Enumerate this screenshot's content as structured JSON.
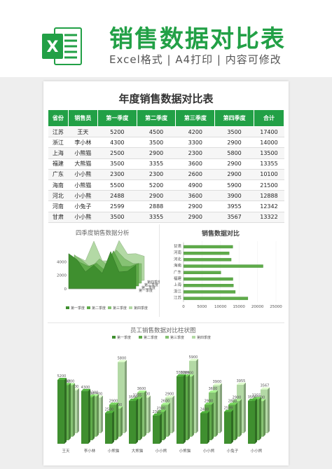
{
  "header": {
    "title": "销售数据对比表",
    "subtitle": "Excel格式 | A4打印 | 内容可修改",
    "logo_letter": "X"
  },
  "sheet": {
    "title": "年度销售数据对比表",
    "columns": [
      "省份",
      "销售员",
      "第一季度",
      "第二季度",
      "第三季度",
      "第四季度",
      "合计"
    ],
    "rows": [
      [
        "江苏",
        "王天",
        "5200",
        "4500",
        "4200",
        "3500",
        "17400"
      ],
      [
        "浙江",
        "李小林",
        "4300",
        "3500",
        "3300",
        "2900",
        "14000"
      ],
      [
        "上海",
        "小熊猫",
        "2500",
        "2900",
        "2300",
        "5800",
        "13500"
      ],
      [
        "福建",
        "大熊猫",
        "3500",
        "3355",
        "3600",
        "2900",
        "13355"
      ],
      [
        "广东",
        "小小熊",
        "2300",
        "2300",
        "2600",
        "2900",
        "10100"
      ],
      [
        "海南",
        "小熊猫",
        "5500",
        "5200",
        "4900",
        "5900",
        "21500"
      ],
      [
        "河北",
        "小小熊",
        "2488",
        "2900",
        "3600",
        "3900",
        "12888"
      ],
      [
        "河南",
        "小兔子",
        "2599",
        "2888",
        "2900",
        "3955",
        "12342"
      ],
      [
        "甘肃",
        "小小熊",
        "3500",
        "3355",
        "2900",
        "3567",
        "13322"
      ]
    ]
  },
  "colors": {
    "brand": "#22a046",
    "series": [
      "#3f8f2f",
      "#5fab4a",
      "#86c273",
      "#b3d9a5"
    ]
  },
  "chart_data": [
    {
      "type": "area",
      "title": "四季度销售数据分析",
      "series_names": [
        "第一季度",
        "第二季度",
        "第三季度",
        "第四季度"
      ],
      "yticks": [
        "4000",
        "2000",
        "0"
      ],
      "ylim": [
        0,
        6000
      ],
      "values": [
        [
          5200,
          4300,
          2500,
          3500,
          2300,
          5500,
          2488,
          2599,
          3500
        ],
        [
          4500,
          3500,
          2900,
          3355,
          2300,
          5200,
          2900,
          2888,
          3355
        ],
        [
          4200,
          3300,
          2300,
          3600,
          2600,
          4900,
          3600,
          2900,
          2900
        ],
        [
          3500,
          2900,
          5800,
          2900,
          2900,
          5900,
          3900,
          3955,
          3567
        ]
      ]
    },
    {
      "type": "bar",
      "title": "销售数据对比",
      "orientation": "horizontal",
      "categories": [
        "甘肃",
        "河南",
        "河北",
        "海南",
        "广东",
        "福建",
        "上海",
        "浙江",
        "江苏"
      ],
      "values": [
        13322,
        12342,
        12888,
        21500,
        10100,
        13355,
        13500,
        14000,
        17400
      ],
      "xticks": [
        "0",
        "5000",
        "10000",
        "15000",
        "20000",
        "25000"
      ],
      "xlim": [
        0,
        25000
      ]
    },
    {
      "type": "bar",
      "title": "员工销售数据对比柱状图",
      "categories": [
        "王天",
        "李小林",
        "小熊猫",
        "大熊猫",
        "小小熊",
        "小熊猫",
        "小小熊",
        "小兔子",
        "小小熊"
      ],
      "series": [
        {
          "name": "第一季度",
          "values": [
            5200,
            4300,
            2500,
            3500,
            2300,
            5500,
            2488,
            2599,
            3500
          ]
        },
        {
          "name": "第二季度",
          "values": [
            4500,
            3500,
            2900,
            3355,
            2300,
            5200,
            2900,
            2888,
            3355
          ]
        },
        {
          "name": "第三季度",
          "values": [
            4200,
            3300,
            2300,
            3600,
            2600,
            4900,
            3600,
            2900,
            2900
          ]
        },
        {
          "name": "第四季度",
          "values": [
            3500,
            2900,
            5800,
            2900,
            2900,
            5900,
            3900,
            3955,
            3567
          ]
        }
      ],
      "ylim": [
        0,
        6000
      ]
    }
  ]
}
